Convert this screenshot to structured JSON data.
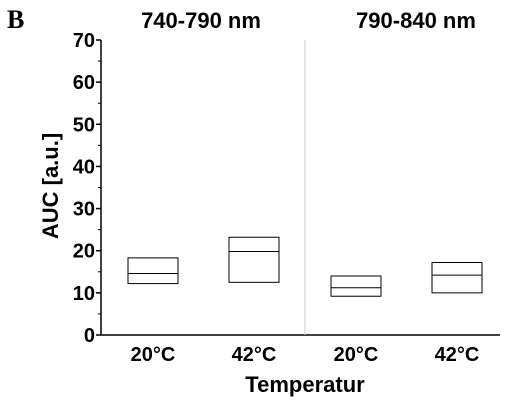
{
  "panel_label": "B",
  "chart_data": {
    "type": "box",
    "ylabel": "AUC [a.u.]",
    "xlabel": "Temperatur",
    "ylim": [
      0,
      70
    ],
    "yticks": [
      0,
      10,
      20,
      30,
      40,
      50,
      60,
      70
    ],
    "grid": false,
    "panels": [
      {
        "title": "740-790 nm",
        "categories": [
          "20°C",
          "42°C"
        ],
        "boxes": [
          {
            "q1": 12.2,
            "median": 14.6,
            "q3": 18.3
          },
          {
            "q1": 12.5,
            "median": 19.8,
            "q3": 23.2
          }
        ]
      },
      {
        "title": "790-840 nm",
        "categories": [
          "20°C",
          "42°C"
        ],
        "boxes": [
          {
            "q1": 9.2,
            "median": 11.2,
            "q3": 14.0
          },
          {
            "q1": 10.0,
            "median": 14.2,
            "q3": 17.2
          }
        ]
      }
    ]
  }
}
